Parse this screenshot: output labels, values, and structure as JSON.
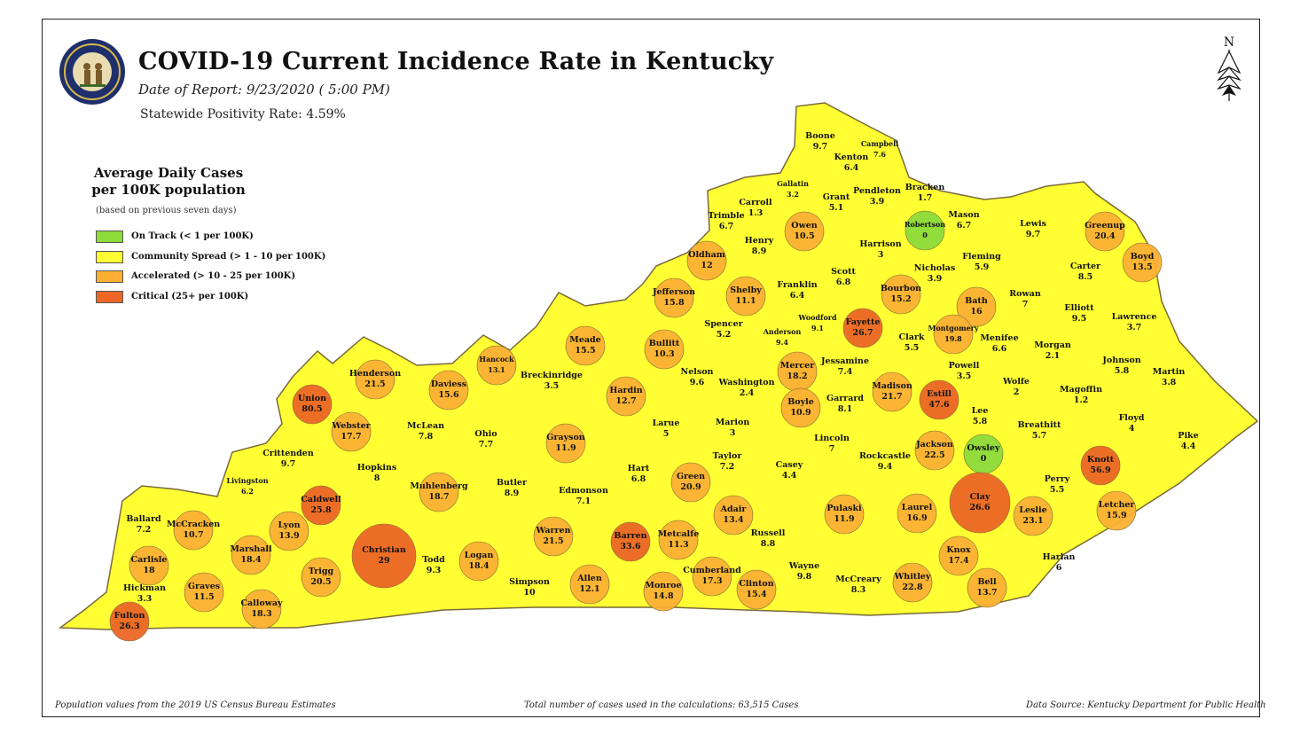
{
  "title": "COVID-19 Current Incidence Rate in Kentucky",
  "date_of_report": "Date of Report: 9/23/2020 ( 5:00 PM)",
  "positivity": "Statewide Positivity Rate: 4.59%",
  "seal_text": "COMMONWEALTH OF KENTUCKY",
  "compass_label": "N",
  "legend": {
    "title_line1": "Average Daily Cases",
    "title_line2": "per 100K population",
    "note": "(based on previous seven days)",
    "items": [
      {
        "label": "On Track (< 1 per 100K)",
        "color": "#8ddc3c"
      },
      {
        "label": "Community Spread (> 1 - 10 per 100K)",
        "color": "#ffff33"
      },
      {
        "label": "Accelerated (> 10 - 25 per 100K)",
        "color": "#fbb034"
      },
      {
        "label": "Critical (25+ per 100K)",
        "color": "#ec6726"
      }
    ]
  },
  "footer": {
    "left": "Population values from the 2019 US Census Bureau Estimates",
    "center": "Total number of cases used in the calculations: 63,515 Cases",
    "right": "Data Source: Kentucky Department for Public Health"
  },
  "colors": {
    "on_track": "#8ddc3c",
    "community": "#ffff33",
    "accelerated": "#fbb034",
    "critical": "#ec6726",
    "border": "#7a6a3a"
  },
  "counties": [
    {
      "name": "Boone",
      "value": "9.7"
    },
    {
      "name": "Kenton",
      "value": "6.4"
    },
    {
      "name": "Campbell",
      "value": "7.6"
    },
    {
      "name": "Gallatin",
      "value": "3.2"
    },
    {
      "name": "Carroll",
      "value": "1.3"
    },
    {
      "name": "Grant",
      "value": "5.1"
    },
    {
      "name": "Pendleton",
      "value": "3.9"
    },
    {
      "name": "Bracken",
      "value": "1.7"
    },
    {
      "name": "Trimble",
      "value": "6.7"
    },
    {
      "name": "Owen",
      "value": "10.5"
    },
    {
      "name": "Robertson",
      "value": "0"
    },
    {
      "name": "Mason",
      "value": "6.7"
    },
    {
      "name": "Lewis",
      "value": "9.7"
    },
    {
      "name": "Greenup",
      "value": "20.4"
    },
    {
      "name": "Henry",
      "value": "8.9"
    },
    {
      "name": "Harrison",
      "value": "3"
    },
    {
      "name": "Oldham",
      "value": "12"
    },
    {
      "name": "Fleming",
      "value": "5.9"
    },
    {
      "name": "Boyd",
      "value": "13.5"
    },
    {
      "name": "Carter",
      "value": "8.5"
    },
    {
      "name": "Nicholas",
      "value": "3.9"
    },
    {
      "name": "Scott",
      "value": "6.8"
    },
    {
      "name": "Franklin",
      "value": "6.4"
    },
    {
      "name": "Shelby",
      "value": "11.1"
    },
    {
      "name": "Jefferson",
      "value": "15.8"
    },
    {
      "name": "Bourbon",
      "value": "15.2"
    },
    {
      "name": "Rowan",
      "value": "7"
    },
    {
      "name": "Bath",
      "value": "16"
    },
    {
      "name": "Elliott",
      "value": "9.5"
    },
    {
      "name": "Lawrence",
      "value": "3.7"
    },
    {
      "name": "Spencer",
      "value": "5.2"
    },
    {
      "name": "Anderson",
      "value": "9.4"
    },
    {
      "name": "Woodford",
      "value": "9.1"
    },
    {
      "name": "Fayette",
      "value": "26.7"
    },
    {
      "name": "Montgomery",
      "value": "19.8"
    },
    {
      "name": "Clark",
      "value": "5.5"
    },
    {
      "name": "Menifee",
      "value": "6.6"
    },
    {
      "name": "Morgan",
      "value": "2.1"
    },
    {
      "name": "Meade",
      "value": "15.5"
    },
    {
      "name": "Bullitt",
      "value": "10.3"
    },
    {
      "name": "Hancock",
      "value": "13.1"
    },
    {
      "name": "Henderson",
      "value": "21.5"
    },
    {
      "name": "Daviess",
      "value": "15.6"
    },
    {
      "name": "Breckinridge",
      "value": "3.5"
    },
    {
      "name": "Nelson",
      "value": "9.6"
    },
    {
      "name": "Mercer",
      "value": "18.2"
    },
    {
      "name": "Jessamine",
      "value": "7.4"
    },
    {
      "name": "Powell",
      "value": "3.5"
    },
    {
      "name": "Johnson",
      "value": "5.8"
    },
    {
      "name": "Martin",
      "value": "3.8"
    },
    {
      "name": "Washington",
      "value": "2.4"
    },
    {
      "name": "Madison",
      "value": "21.7"
    },
    {
      "name": "Estill",
      "value": "47.6"
    },
    {
      "name": "Wolfe",
      "value": "2"
    },
    {
      "name": "Magoffin",
      "value": "1.2"
    },
    {
      "name": "Union",
      "value": "80.5"
    },
    {
      "name": "Hardin",
      "value": "12.7"
    },
    {
      "name": "Boyle",
      "value": "10.9"
    },
    {
      "name": "Garrard",
      "value": "8.1"
    },
    {
      "name": "Lee",
      "value": "5.8"
    },
    {
      "name": "Webster",
      "value": "17.7"
    },
    {
      "name": "McLean",
      "value": "7.8"
    },
    {
      "name": "Ohio",
      "value": "7.7"
    },
    {
      "name": "Larue",
      "value": "5"
    },
    {
      "name": "Marion",
      "value": "3"
    },
    {
      "name": "Breathitt",
      "value": "5.7"
    },
    {
      "name": "Floyd",
      "value": "4"
    },
    {
      "name": "Grayson",
      "value": "11.9"
    },
    {
      "name": "Lincoln",
      "value": "7"
    },
    {
      "name": "Jackson",
      "value": "22.5"
    },
    {
      "name": "Owsley",
      "value": "0"
    },
    {
      "name": "Pike",
      "value": "4.4"
    },
    {
      "name": "Crittenden",
      "value": "9.7"
    },
    {
      "name": "Taylor",
      "value": "7.2"
    },
    {
      "name": "Rockcastle",
      "value": "9.4"
    },
    {
      "name": "Knott",
      "value": "56.9"
    },
    {
      "name": "Hopkins",
      "value": "8"
    },
    {
      "name": "Hart",
      "value": "6.8"
    },
    {
      "name": "Casey",
      "value": "4.4"
    },
    {
      "name": "Livingston",
      "value": "6.2"
    },
    {
      "name": "Caldwell",
      "value": "25.8"
    },
    {
      "name": "Muhlenberg",
      "value": "18.7"
    },
    {
      "name": "Butler",
      "value": "8.9"
    },
    {
      "name": "Edmonson",
      "value": "7.1"
    },
    {
      "name": "Green",
      "value": "20.9"
    },
    {
      "name": "Perry",
      "value": "5.5"
    },
    {
      "name": "Clay",
      "value": "26.6"
    },
    {
      "name": "Letcher",
      "value": "15.9"
    },
    {
      "name": "Ballard",
      "value": "7.2"
    },
    {
      "name": "McCracken",
      "value": "10.7"
    },
    {
      "name": "Lyon",
      "value": "13.9"
    },
    {
      "name": "Adair",
      "value": "13.4"
    },
    {
      "name": "Pulaski",
      "value": "11.9"
    },
    {
      "name": "Laurel",
      "value": "16.9"
    },
    {
      "name": "Leslie",
      "value": "23.1"
    },
    {
      "name": "Marshall",
      "value": "18.4"
    },
    {
      "name": "Christian",
      "value": "29"
    },
    {
      "name": "Warren",
      "value": "21.5"
    },
    {
      "name": "Barren",
      "value": "33.6"
    },
    {
      "name": "Metcalfe",
      "value": "11.3"
    },
    {
      "name": "Russell",
      "value": "8.8"
    },
    {
      "name": "Carlisle",
      "value": "18"
    },
    {
      "name": "Logan",
      "value": "18.4"
    },
    {
      "name": "Todd",
      "value": "9.3"
    },
    {
      "name": "Knox",
      "value": "17.4"
    },
    {
      "name": "Harlan",
      "value": "6"
    },
    {
      "name": "Trigg",
      "value": "20.5"
    },
    {
      "name": "Cumberland",
      "value": "17.3"
    },
    {
      "name": "Wayne",
      "value": "9.8"
    },
    {
      "name": "Allen",
      "value": "12.1"
    },
    {
      "name": "Whitley",
      "value": "22.8"
    },
    {
      "name": "Bell",
      "value": "13.7"
    },
    {
      "name": "Hickman",
      "value": "3.3"
    },
    {
      "name": "Graves",
      "value": "11.5"
    },
    {
      "name": "Simpson",
      "value": "10"
    },
    {
      "name": "Monroe",
      "value": "14.8"
    },
    {
      "name": "Clinton",
      "value": "15.4"
    },
    {
      "name": "McCreary",
      "value": "8.3"
    },
    {
      "name": "Calloway",
      "value": "18.3"
    },
    {
      "name": "Fulton",
      "value": "26.3"
    }
  ]
}
